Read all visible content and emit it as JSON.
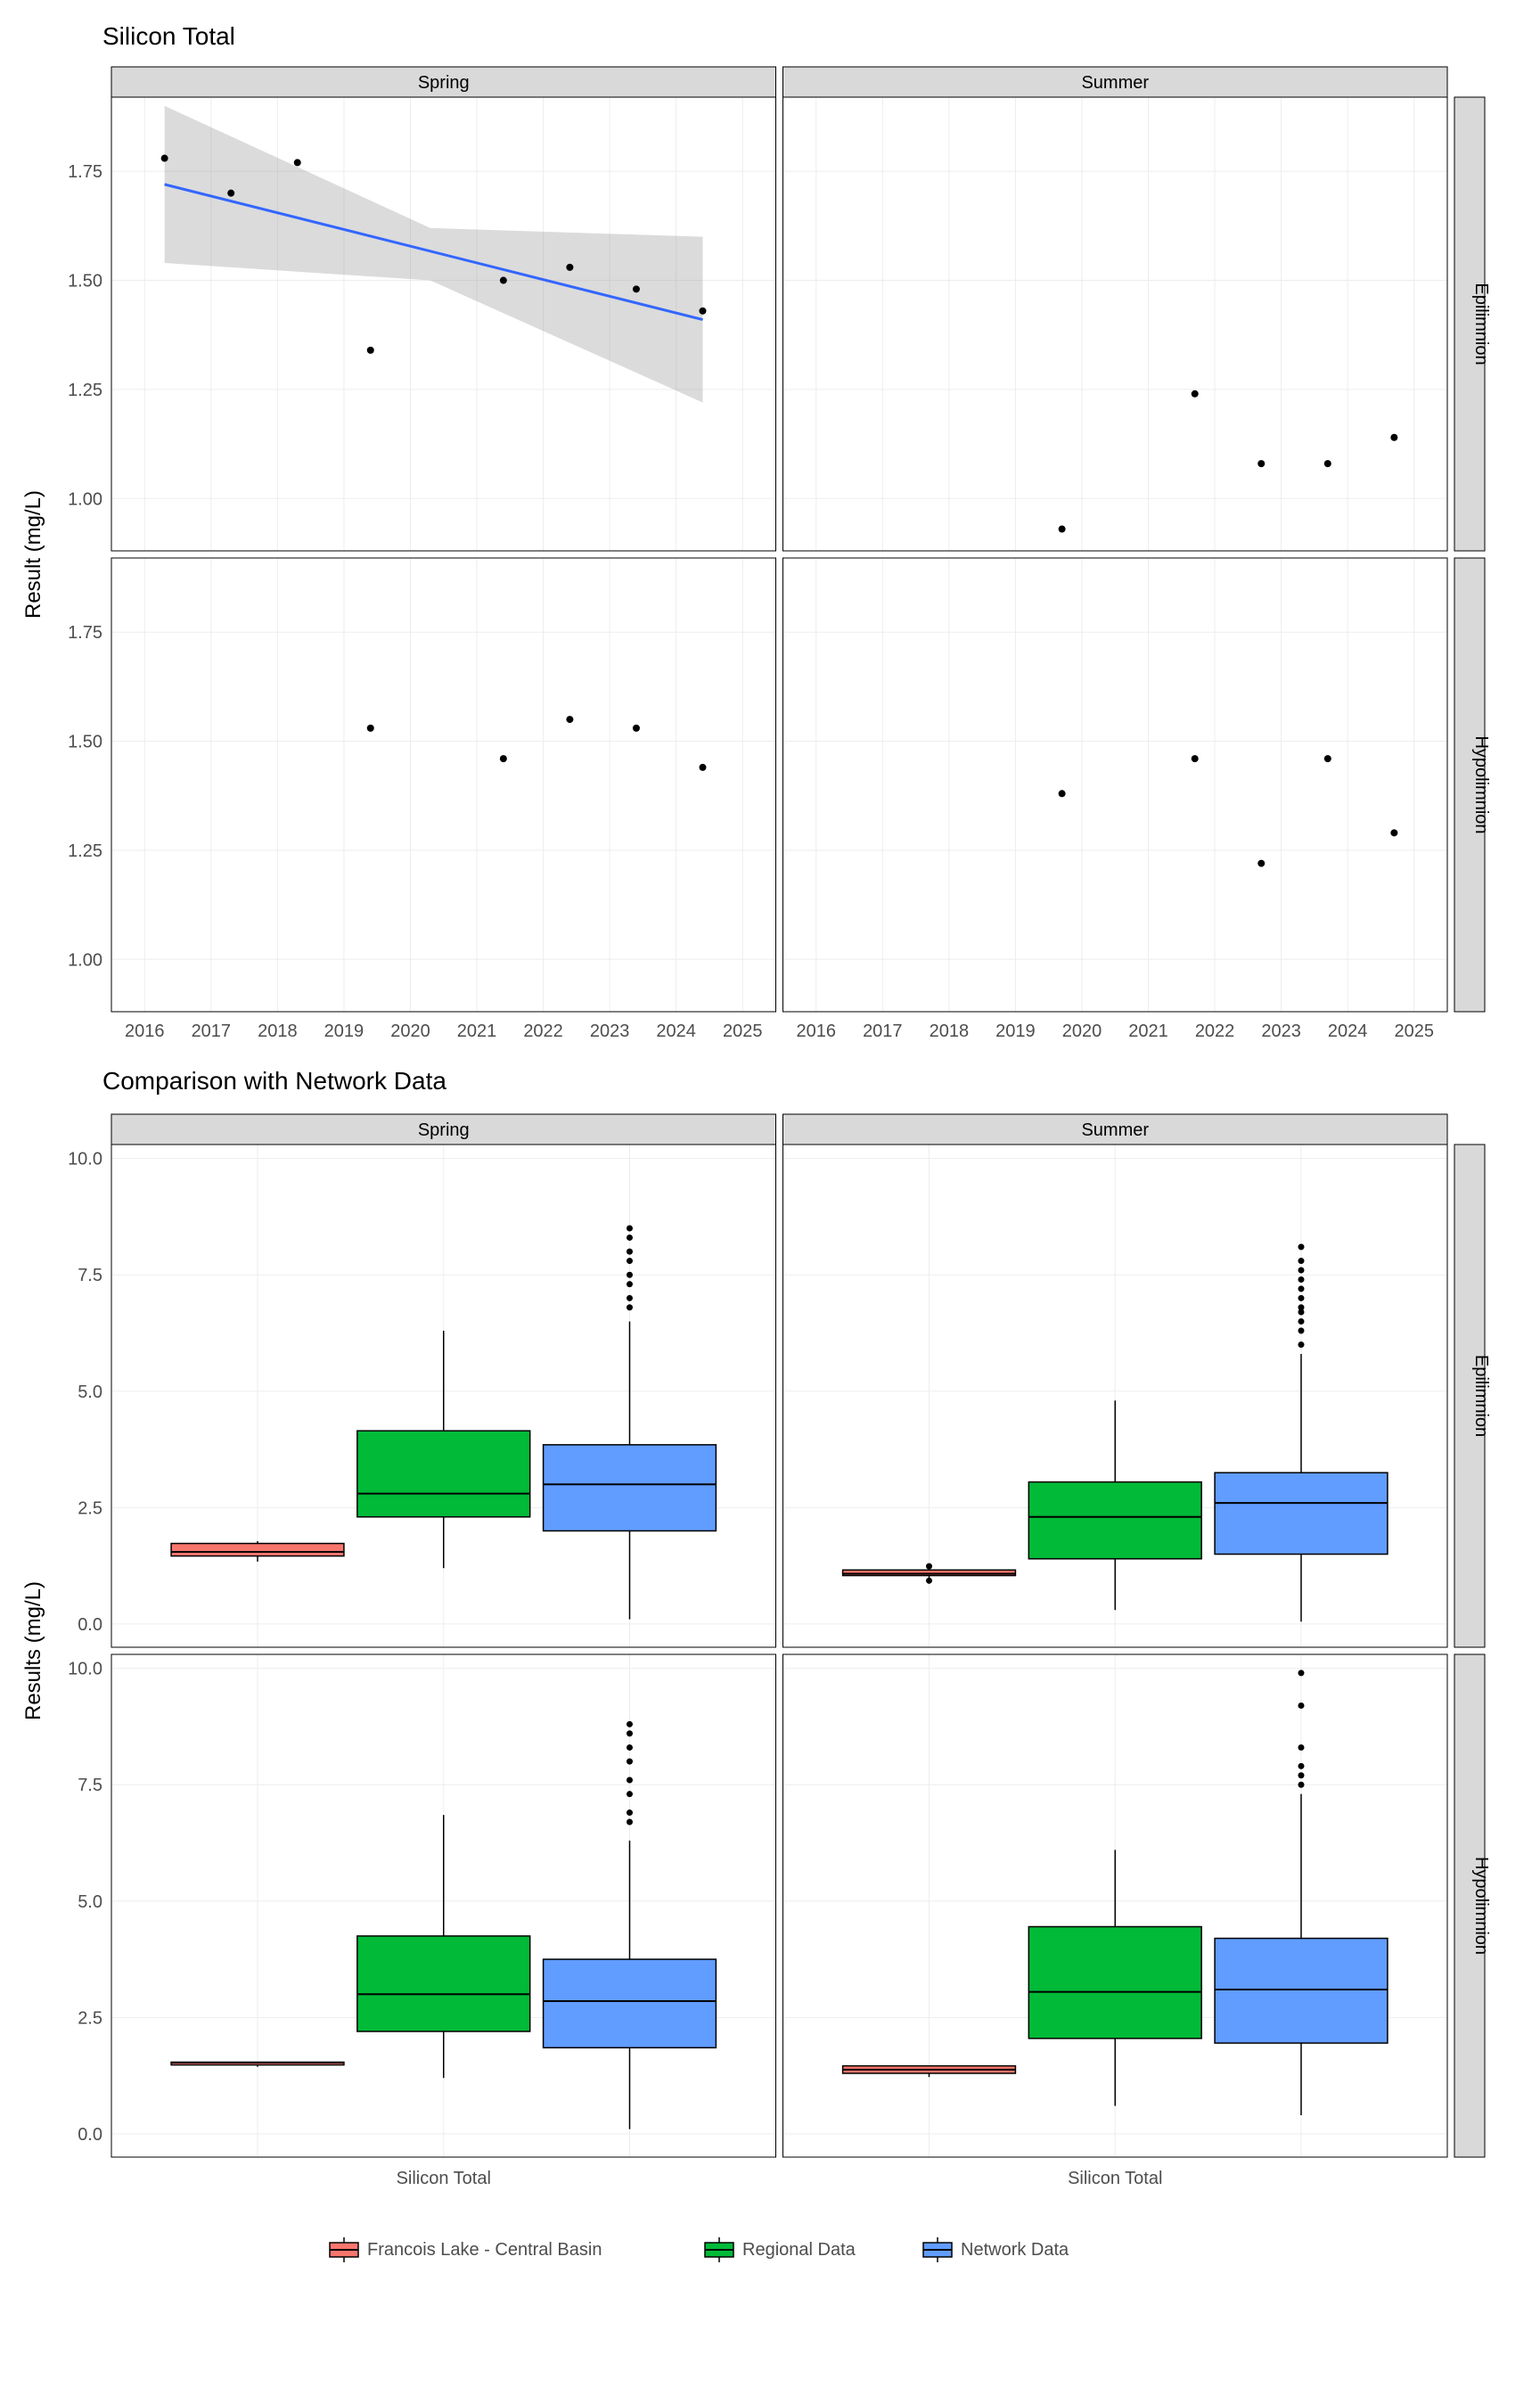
{
  "chart1": {
    "title": "Silicon Total",
    "ylabel": "Result (mg/L)",
    "cols": [
      "Spring",
      "Summer"
    ],
    "rows": [
      "Epilimnion",
      "Hypolimnion"
    ],
    "xlim": [
      2015.5,
      2025.5
    ],
    "xticks": [
      2016,
      2017,
      2018,
      2019,
      2020,
      2021,
      2022,
      2023,
      2024,
      2025
    ],
    "ylim": [
      0.88,
      1.92
    ],
    "yticks": [
      1.0,
      1.25,
      1.5,
      1.75
    ],
    "grid_color": "#ededed",
    "panel_border": "#000000",
    "strip_bg": "#d9d9d9",
    "point_color": "#000000",
    "point_radius": 4,
    "trend_color": "#3366ff",
    "ci_color": "#999999",
    "ci_opacity": 0.35,
    "panels": {
      "Spring_Epilimnion": {
        "points": [
          [
            2016.3,
            1.78
          ],
          [
            2017.3,
            1.7
          ],
          [
            2018.3,
            1.77
          ],
          [
            2019.4,
            1.34
          ],
          [
            2021.4,
            1.5
          ],
          [
            2022.4,
            1.53
          ],
          [
            2023.4,
            1.48
          ],
          [
            2024.4,
            1.43
          ]
        ],
        "trend": {
          "x0": 2016.3,
          "y0": 1.72,
          "x1": 2024.4,
          "y1": 1.41,
          "ci_top": [
            [
              2016.3,
              1.9
            ],
            [
              2024.4,
              1.6
            ]
          ],
          "ci_bot": [
            [
              2016.3,
              1.54
            ],
            [
              2024.4,
              1.22
            ]
          ],
          "ci_mid_top": 1.62,
          "ci_mid_bot": 1.5,
          "mid_x": 2020.3
        }
      },
      "Summer_Epilimnion": {
        "points": [
          [
            2019.7,
            0.93
          ],
          [
            2021.7,
            1.24
          ],
          [
            2022.7,
            1.08
          ],
          [
            2023.7,
            1.08
          ],
          [
            2024.7,
            1.14
          ]
        ]
      },
      "Spring_Hypolimnion": {
        "points": [
          [
            2019.4,
            1.53
          ],
          [
            2021.4,
            1.46
          ],
          [
            2022.4,
            1.55
          ],
          [
            2023.4,
            1.53
          ],
          [
            2024.4,
            1.44
          ]
        ]
      },
      "Summer_Hypolimnion": {
        "points": [
          [
            2019.7,
            1.38
          ],
          [
            2021.7,
            1.46
          ],
          [
            2022.7,
            1.22
          ],
          [
            2023.7,
            1.46
          ],
          [
            2024.7,
            1.29
          ]
        ]
      }
    }
  },
  "chart2": {
    "title": "Comparison with Network Data",
    "ylabel": "Results (mg/L)",
    "cols": [
      "Spring",
      "Summer"
    ],
    "rows": [
      "Epilimnion",
      "Hypolimnion"
    ],
    "ylim": [
      -0.5,
      10.3
    ],
    "yticks": [
      0.0,
      2.5,
      5.0,
      7.5,
      10.0
    ],
    "xlabel": "Silicon Total",
    "categories": [
      "Francois",
      "Regional",
      "Network"
    ],
    "colors": {
      "Francois": "#f8766d",
      "Regional": "#00ba38",
      "Network": "#619cff"
    },
    "box_width": 0.26,
    "panels": {
      "Spring_Epilimnion": {
        "Francois": {
          "min": 1.34,
          "q1": 1.46,
          "med": 1.55,
          "q3": 1.73,
          "max": 1.78,
          "outliers": []
        },
        "Regional": {
          "min": 1.2,
          "q1": 2.3,
          "med": 2.8,
          "q3": 4.15,
          "max": 6.3,
          "outliers": []
        },
        "Network": {
          "min": 0.1,
          "q1": 2.0,
          "med": 3.0,
          "q3": 3.85,
          "max": 6.5,
          "outliers": [
            6.8,
            7.0,
            7.3,
            7.5,
            7.8,
            8.0,
            8.3,
            8.5
          ]
        }
      },
      "Summer_Epilimnion": {
        "Francois": {
          "min": 0.93,
          "q1": 1.04,
          "med": 1.08,
          "q3": 1.16,
          "max": 1.24,
          "outliers": [
            0.93,
            1.24
          ]
        },
        "Regional": {
          "min": 0.3,
          "q1": 1.4,
          "med": 2.3,
          "q3": 3.05,
          "max": 4.8,
          "outliers": []
        },
        "Network": {
          "min": 0.05,
          "q1": 1.5,
          "med": 2.6,
          "q3": 3.25,
          "max": 5.8,
          "outliers": [
            6.0,
            6.3,
            6.5,
            6.7,
            6.8,
            7.0,
            7.2,
            7.4,
            7.6,
            7.8,
            8.1
          ]
        }
      },
      "Spring_Hypolimnion": {
        "Francois": {
          "min": 1.44,
          "q1": 1.48,
          "med": 1.53,
          "q3": 1.54,
          "max": 1.55,
          "outliers": []
        },
        "Regional": {
          "min": 1.2,
          "q1": 2.2,
          "med": 3.0,
          "q3": 4.25,
          "max": 6.85,
          "outliers": []
        },
        "Network": {
          "min": 0.1,
          "q1": 1.85,
          "med": 2.85,
          "q3": 3.75,
          "max": 6.3,
          "outliers": [
            6.7,
            6.9,
            7.3,
            7.6,
            8.0,
            8.3,
            8.6,
            8.8
          ]
        }
      },
      "Summer_Hypolimnion": {
        "Francois": {
          "min": 1.22,
          "q1": 1.3,
          "med": 1.38,
          "q3": 1.46,
          "max": 1.46,
          "outliers": []
        },
        "Regional": {
          "min": 0.6,
          "q1": 2.05,
          "med": 3.05,
          "q3": 4.45,
          "max": 6.1,
          "outliers": []
        },
        "Network": {
          "min": 0.4,
          "q1": 1.95,
          "med": 3.1,
          "q3": 4.2,
          "max": 7.3,
          "outliers": [
            7.5,
            7.7,
            7.9,
            8.3,
            9.2,
            9.9
          ]
        }
      }
    }
  },
  "legend": {
    "items": [
      {
        "label": "Francois Lake - Central Basin",
        "color": "#f8766d"
      },
      {
        "label": "Regional Data",
        "color": "#00ba38"
      },
      {
        "label": "Network Data",
        "color": "#619cff"
      }
    ]
  }
}
